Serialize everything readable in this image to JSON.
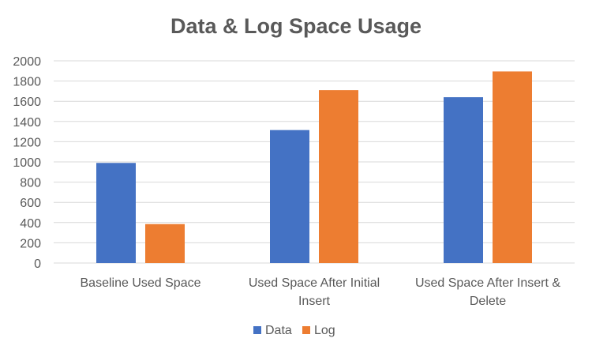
{
  "chart_data": {
    "type": "bar",
    "title": "Data & Log Space Usage",
    "categories": [
      [
        "Baseline Used Space"
      ],
      [
        "Used Space After Initial",
        "Insert"
      ],
      [
        "Used Space After Insert &",
        "Delete"
      ]
    ],
    "series": [
      {
        "name": "Data",
        "values": [
          990,
          1315,
          1640
        ],
        "color": "#4472C4"
      },
      {
        "name": "Log",
        "values": [
          385,
          1710,
          1895
        ],
        "color": "#ED7D31"
      }
    ],
    "ylim": [
      0,
      2000
    ],
    "yticks": [
      0,
      200,
      400,
      600,
      800,
      1000,
      1200,
      1400,
      1600,
      1800,
      2000
    ],
    "grid": true,
    "legend": "bottom"
  }
}
